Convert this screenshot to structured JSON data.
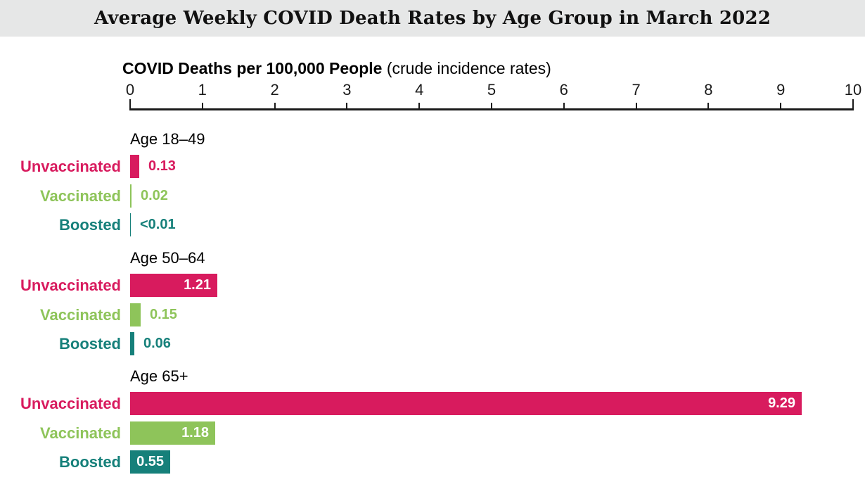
{
  "title": "Average Weekly COVID Death Rates by Age Group in March 2022",
  "chart_data": {
    "type": "bar",
    "orientation": "horizontal",
    "title": "Average Weekly COVID Death Rates by Age Group in March 2022",
    "xlabel_bold": "COVID Deaths per 100,000 People",
    "xlabel_note": "(crude incidence rates)",
    "xlim": [
      0,
      10
    ],
    "ticks": [
      0,
      1,
      2,
      3,
      4,
      5,
      6,
      7,
      8,
      9,
      10
    ],
    "grid": false,
    "legend": "none",
    "series_colors": {
      "unvaccinated": "#d81b5e",
      "vaccinated": "#8ec45a",
      "boosted": "#16807a"
    },
    "groups": [
      {
        "label": "Age 18–49",
        "rows": [
          {
            "name": "Unvaccinated",
            "value": 0.13,
            "display": "0.13",
            "color_key": "unvaccinated"
          },
          {
            "name": "Vaccinated",
            "value": 0.02,
            "display": "0.02",
            "color_key": "vaccinated"
          },
          {
            "name": "Boosted",
            "value": 0.01,
            "display": "<0.01",
            "color_key": "boosted"
          }
        ]
      },
      {
        "label": "Age 50–64",
        "rows": [
          {
            "name": "Unvaccinated",
            "value": 1.21,
            "display": "1.21",
            "color_key": "unvaccinated"
          },
          {
            "name": "Vaccinated",
            "value": 0.15,
            "display": "0.15",
            "color_key": "vaccinated"
          },
          {
            "name": "Boosted",
            "value": 0.06,
            "display": "0.06",
            "color_key": "boosted"
          }
        ]
      },
      {
        "label": "Age 65+",
        "rows": [
          {
            "name": "Unvaccinated",
            "value": 9.29,
            "display": "9.29",
            "color_key": "unvaccinated"
          },
          {
            "name": "Vaccinated",
            "value": 1.18,
            "display": "1.18",
            "color_key": "vaccinated"
          },
          {
            "name": "Boosted",
            "value": 0.55,
            "display": "0.55",
            "color_key": "boosted"
          }
        ]
      }
    ]
  }
}
